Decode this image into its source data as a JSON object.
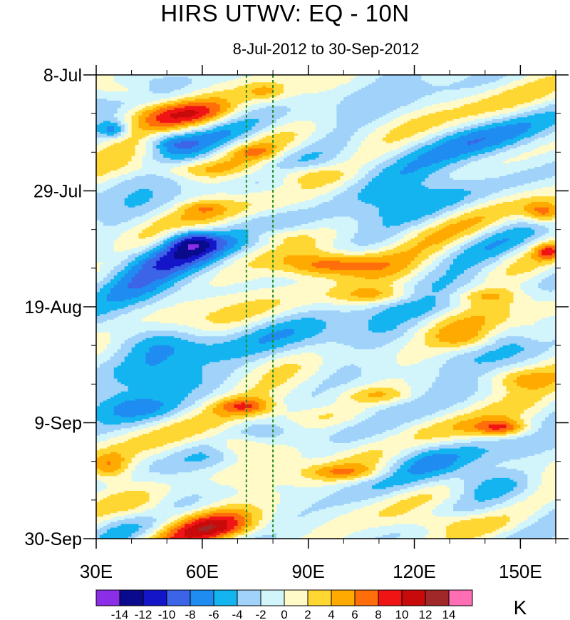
{
  "chart_data": {
    "type": "heatmap",
    "title": "HIRS UTWV: EQ - 10N",
    "subtitle": "8-Jul-2012 to 30-Sep-2012",
    "x_axis": {
      "range": [
        30,
        160
      ],
      "major_ticks": [
        30,
        60,
        90,
        120,
        150
      ],
      "major_labels": [
        "30E",
        "60E",
        "90E",
        "120E",
        "150E"
      ],
      "minor_step": 10
    },
    "y_axis": {
      "range_days_since_8jul": [
        0,
        84
      ],
      "major_ticks": [
        0,
        21,
        42,
        63,
        84
      ],
      "major_labels": [
        "8-Jul",
        "29-Jul",
        "19-Aug",
        "9-Sep",
        "30-Sep"
      ],
      "minor_step": 7,
      "reversed": true
    },
    "reference_lines": [
      {
        "x": 72.5,
        "style": "dashed",
        "color": "#228B22"
      },
      {
        "x": 80,
        "style": "dashed",
        "color": "#228B22"
      }
    ],
    "colorbar": {
      "unit": "K",
      "levels": [
        -14,
        -12,
        -10,
        -8,
        -6,
        -4,
        -2,
        0,
        2,
        4,
        6,
        8,
        10,
        12,
        14
      ],
      "labels": [
        "-14",
        "-12",
        "-10",
        "-8",
        "-6",
        "-4",
        "-2",
        "0",
        "2",
        "4",
        "6",
        "8",
        "10",
        "12",
        "14"
      ],
      "colors": [
        "#8c2ee8",
        "#0a0a8c",
        "#1414c8",
        "#3c64e6",
        "#1e8cf0",
        "#14b4f0",
        "#a0d2fa",
        "#d2f5fc",
        "#fffac8",
        "#ffd732",
        "#ffaa00",
        "#ff6e0a",
        "#f01414",
        "#c80a0a",
        "#a02828",
        "#ff6eb4"
      ]
    },
    "features": [
      {
        "lon": 60,
        "day": 7,
        "value": 5,
        "wx": 12,
        "wd": 2.2
      },
      {
        "lon": 45,
        "day": 7,
        "value": 4,
        "wx": 10,
        "wd": 2.5
      },
      {
        "lon": 38,
        "day": 3,
        "value": 3,
        "wx": 8,
        "wd": 1.8
      },
      {
        "lon": 78,
        "day": 3,
        "value": 4,
        "wx": 6,
        "wd": 1.8
      },
      {
        "lon": 50,
        "day": 12,
        "value": -6,
        "wx": 8,
        "wd": 2.0
      },
      {
        "lon": 35,
        "day": 10,
        "value": -6,
        "wx": 4,
        "wd": 1.5
      },
      {
        "lon": 55,
        "day": 17,
        "value": 4,
        "wx": 14,
        "wd": 1.6
      },
      {
        "lon": 88,
        "day": 18,
        "value": 4,
        "wx": 12,
        "wd": 1.8
      },
      {
        "lon": 75,
        "day": 14,
        "value": 3,
        "wx": 6,
        "wd": 1.2
      },
      {
        "lon": 60,
        "day": 24,
        "value": 3,
        "wx": 6,
        "wd": 1.2
      },
      {
        "lon": 80,
        "day": 29,
        "value": 3,
        "wx": 10,
        "wd": 1.5
      },
      {
        "lon": 56,
        "day": 30,
        "value": -10,
        "wx": 8,
        "wd": 2.5
      },
      {
        "lon": 48,
        "day": 33,
        "value": -6,
        "wx": 12,
        "wd": 3.0
      },
      {
        "lon": 40,
        "day": 37,
        "value": -4,
        "wx": 12,
        "wd": 4.0
      },
      {
        "lon": 100,
        "day": 34,
        "value": 7,
        "wx": 14,
        "wd": 2.2
      },
      {
        "lon": 92,
        "day": 35,
        "value": 4,
        "wx": 10,
        "wd": 2.0
      },
      {
        "lon": 110,
        "day": 40,
        "value": 4,
        "wx": 12,
        "wd": 1.5
      },
      {
        "lon": 140,
        "day": 40,
        "value": 4,
        "wx": 10,
        "wd": 1.5
      },
      {
        "lon": 157,
        "day": 25,
        "value": 8,
        "wx": 6,
        "wd": 2.0
      },
      {
        "lon": 158,
        "day": 32,
        "value": 6,
        "wx": 4,
        "wd": 1.5
      },
      {
        "lon": 115,
        "day": 20,
        "value": -4,
        "wx": 20,
        "wd": 6.0
      },
      {
        "lon": 140,
        "day": 12,
        "value": -3,
        "wx": 20,
        "wd": 5.0
      },
      {
        "lon": 45,
        "day": 48,
        "value": -6,
        "wx": 15,
        "wd": 3.5
      },
      {
        "lon": 50,
        "day": 55,
        "value": -4,
        "wx": 15,
        "wd": 3.0
      },
      {
        "lon": 40,
        "day": 60,
        "value": -5,
        "wx": 14,
        "wd": 3.0
      },
      {
        "lon": 72,
        "day": 60,
        "value": 6,
        "wx": 8,
        "wd": 1.5
      },
      {
        "lon": 90,
        "day": 62,
        "value": 3,
        "wx": 16,
        "wd": 2.0
      },
      {
        "lon": 110,
        "day": 58,
        "value": 4,
        "wx": 10,
        "wd": 1.5
      },
      {
        "lon": 145,
        "day": 64,
        "value": 8,
        "wx": 8,
        "wd": 1.5
      },
      {
        "lon": 150,
        "day": 55,
        "value": 4,
        "wx": 10,
        "wd": 2.0
      },
      {
        "lon": 70,
        "day": 67,
        "value": 6,
        "wx": 8,
        "wd": 2.0
      },
      {
        "lon": 34,
        "day": 71,
        "value": 6,
        "wx": 6,
        "wd": 2.5
      },
      {
        "lon": 100,
        "day": 72,
        "value": 5,
        "wx": 12,
        "wd": 1.5
      },
      {
        "lon": 140,
        "day": 74,
        "value": -5,
        "wx": 14,
        "wd": 3.0
      },
      {
        "lon": 120,
        "day": 68,
        "value": -4,
        "wx": 12,
        "wd": 3.0
      },
      {
        "lon": 65,
        "day": 82,
        "value": 7,
        "wx": 14,
        "wd": 3.0
      },
      {
        "lon": 45,
        "day": 79,
        "value": 4,
        "wx": 10,
        "wd": 3.0
      },
      {
        "lon": 128,
        "day": 81,
        "value": 4,
        "wx": 14,
        "wd": 2.0
      },
      {
        "lon": 115,
        "day": 48,
        "value": -3,
        "wx": 14,
        "wd": 3.0
      },
      {
        "lon": 95,
        "day": 50,
        "value": -3,
        "wx": 12,
        "wd": 4.0
      },
      {
        "lon": 135,
        "day": 48,
        "value": 3,
        "wx": 8,
        "wd": 2.0
      },
      {
        "lon": 155,
        "day": 47,
        "value": 3,
        "wx": 6,
        "wd": 2.0
      }
    ]
  }
}
